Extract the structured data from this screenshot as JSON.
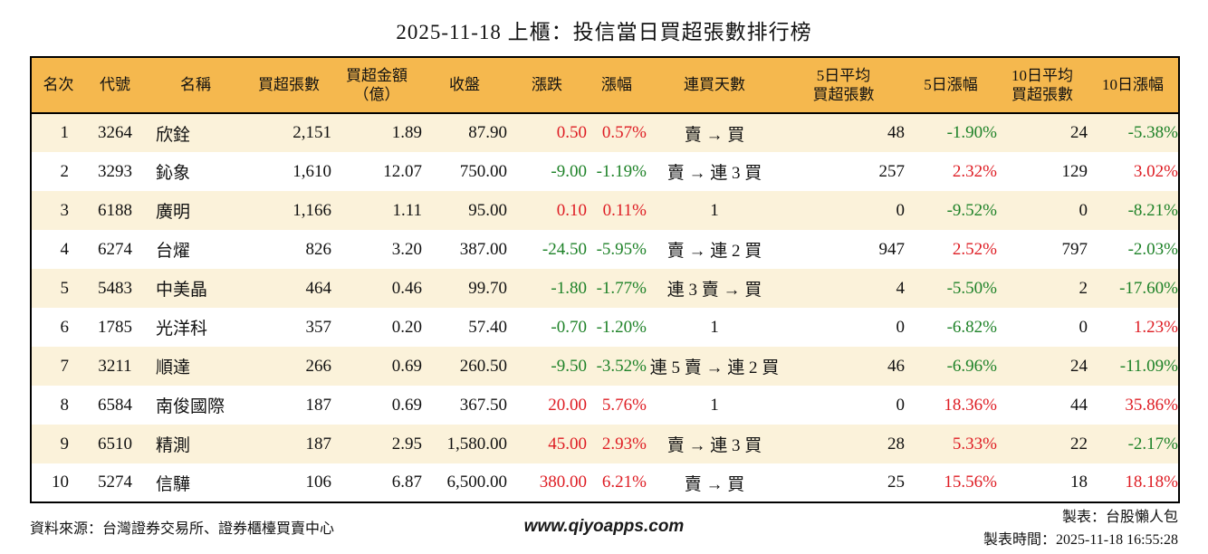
{
  "title": "2025-11-18 上櫃：投信當日買超張數排行榜",
  "colors": {
    "up_red": "#de1c23",
    "down_green": "#1e8228",
    "header_background": "#f5b84e",
    "alternate_row": "#fbf2da",
    "border": "#000000"
  },
  "chart_data": {
    "type": "table",
    "title": "2025-11-18 上櫃：投信當日買超張數排行榜",
    "columns": [
      {
        "key": "rank",
        "label": "名次"
      },
      {
        "key": "code",
        "label": "代號"
      },
      {
        "key": "name",
        "label": "名稱"
      },
      {
        "key": "volume",
        "label": "買超張數"
      },
      {
        "key": "amount",
        "label": "買超金額\n（億）"
      },
      {
        "key": "close",
        "label": "收盤"
      },
      {
        "key": "change",
        "label": "漲跌"
      },
      {
        "key": "change_pct",
        "label": "漲幅"
      },
      {
        "key": "streak",
        "label": "連買天數"
      },
      {
        "key": "avg5",
        "label": "5日平均\n買超張數"
      },
      {
        "key": "pct5",
        "label": "5日漲幅"
      },
      {
        "key": "avg10",
        "label": "10日平均\n買超張數"
      },
      {
        "key": "pct10",
        "label": "10日漲幅"
      }
    ],
    "rows": [
      {
        "rank": "1",
        "code": "3264",
        "name": "欣銓",
        "volume": "2,151",
        "amount": "1.89",
        "close": "87.90",
        "change": "0.50",
        "change_pct": "0.57%",
        "streak": "賣 → 買",
        "avg5": "48",
        "pct5": "-1.90%",
        "avg10": "24",
        "pct10": "-5.38%"
      },
      {
        "rank": "2",
        "code": "3293",
        "name": "鈊象",
        "volume": "1,610",
        "amount": "12.07",
        "close": "750.00",
        "change": "-9.00",
        "change_pct": "-1.19%",
        "streak": "賣 → 連 3 買",
        "avg5": "257",
        "pct5": "2.32%",
        "avg10": "129",
        "pct10": "3.02%"
      },
      {
        "rank": "3",
        "code": "6188",
        "name": "廣明",
        "volume": "1,166",
        "amount": "1.11",
        "close": "95.00",
        "change": "0.10",
        "change_pct": "0.11%",
        "streak": "1",
        "avg5": "0",
        "pct5": "-9.52%",
        "avg10": "0",
        "pct10": "-8.21%"
      },
      {
        "rank": "4",
        "code": "6274",
        "name": "台燿",
        "volume": "826",
        "amount": "3.20",
        "close": "387.00",
        "change": "-24.50",
        "change_pct": "-5.95%",
        "streak": "賣 → 連 2 買",
        "avg5": "947",
        "pct5": "2.52%",
        "avg10": "797",
        "pct10": "-2.03%"
      },
      {
        "rank": "5",
        "code": "5483",
        "name": "中美晶",
        "volume": "464",
        "amount": "0.46",
        "close": "99.70",
        "change": "-1.80",
        "change_pct": "-1.77%",
        "streak": "連 3 賣 → 買",
        "avg5": "4",
        "pct5": "-5.50%",
        "avg10": "2",
        "pct10": "-17.60%"
      },
      {
        "rank": "6",
        "code": "1785",
        "name": "光洋科",
        "volume": "357",
        "amount": "0.20",
        "close": "57.40",
        "change": "-0.70",
        "change_pct": "-1.20%",
        "streak": "1",
        "avg5": "0",
        "pct5": "-6.82%",
        "avg10": "0",
        "pct10": "1.23%"
      },
      {
        "rank": "7",
        "code": "3211",
        "name": "順達",
        "volume": "266",
        "amount": "0.69",
        "close": "260.50",
        "change": "-9.50",
        "change_pct": "-3.52%",
        "streak": "連 5 賣 → 連 2 買",
        "avg5": "46",
        "pct5": "-6.96%",
        "avg10": "24",
        "pct10": "-11.09%"
      },
      {
        "rank": "8",
        "code": "6584",
        "name": "南俊國際",
        "volume": "187",
        "amount": "0.69",
        "close": "367.50",
        "change": "20.00",
        "change_pct": "5.76%",
        "streak": "1",
        "avg5": "0",
        "pct5": "18.36%",
        "avg10": "44",
        "pct10": "35.86%"
      },
      {
        "rank": "9",
        "code": "6510",
        "name": "精測",
        "volume": "187",
        "amount": "2.95",
        "close": "1,580.00",
        "change": "45.00",
        "change_pct": "2.93%",
        "streak": "賣 → 連 3 買",
        "avg5": "28",
        "pct5": "5.33%",
        "avg10": "22",
        "pct10": "-2.17%"
      },
      {
        "rank": "10",
        "code": "5274",
        "name": "信驊",
        "volume": "106",
        "amount": "6.87",
        "close": "6,500.00",
        "change": "380.00",
        "change_pct": "6.21%",
        "streak": "賣 → 買",
        "avg5": "25",
        "pct5": "15.56%",
        "avg10": "18",
        "pct10": "18.18%"
      }
    ]
  },
  "footer": {
    "source": "資料來源：台灣證券交易所、證券櫃檯買賣中心",
    "website": "www.qiyoapps.com",
    "author": "製表：台股懶人包",
    "generated": "製表時間：2025-11-18 16:55:28"
  }
}
